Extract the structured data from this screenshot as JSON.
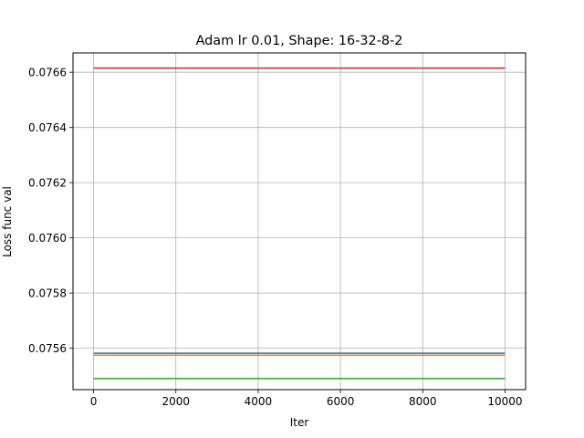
{
  "chart_data": {
    "type": "line",
    "title": "Adam lr 0.01, Shape: 16-32-8-2",
    "xlabel": "Iter",
    "ylabel": "Loss func val",
    "xlim": [
      -500,
      10500
    ],
    "ylim": [
      0.07545,
      0.07667
    ],
    "x_ticks": [
      0,
      2000,
      4000,
      6000,
      8000,
      10000
    ],
    "x_tick_labels": [
      "0",
      "2000",
      "4000",
      "6000",
      "8000",
      "10000"
    ],
    "y_ticks": [
      0.0756,
      0.0758,
      0.076,
      0.0762,
      0.0764,
      0.0766
    ],
    "y_tick_labels": [
      "0.0756",
      "0.0758",
      "0.0760",
      "0.0762",
      "0.0764",
      "0.0766"
    ],
    "grid": true,
    "series": [
      {
        "x": [
          0,
          10000
        ],
        "y": [
          0.075582,
          0.075582
        ],
        "color": "#1f77b4"
      },
      {
        "x": [
          0,
          10000
        ],
        "y": [
          0.075575,
          0.075575
        ],
        "color": "#ff7f0e"
      },
      {
        "x": [
          0,
          10000
        ],
        "y": [
          0.07549,
          0.07549
        ],
        "color": "#2ca02c"
      },
      {
        "x": [
          0,
          10000
        ],
        "y": [
          0.076615,
          0.076615
        ],
        "color": "#d62728"
      }
    ]
  }
}
